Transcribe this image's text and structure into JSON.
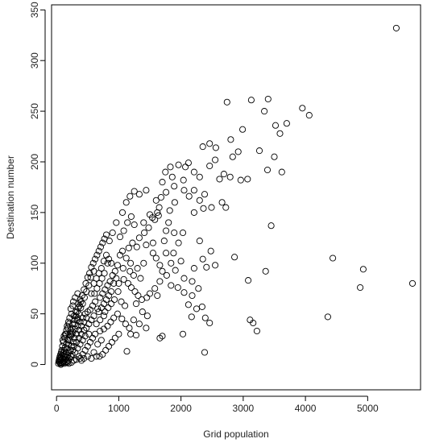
{
  "chart_data": {
    "type": "scatter",
    "title": "",
    "xlabel": "Grid population",
    "ylabel": "Destination number",
    "xlim": [
      -80,
      5850
    ],
    "ylim": [
      -25,
      355
    ],
    "xticks": [
      0,
      1000,
      2000,
      3000,
      4000,
      5000
    ],
    "yticks": [
      0,
      50,
      100,
      150,
      200,
      250,
      300,
      350
    ],
    "xtick_labels": [
      "0",
      "1000",
      "2000",
      "3000",
      "4000",
      "5000"
    ],
    "ytick_labels": [
      "0",
      "50",
      "100",
      "150",
      "200",
      "250",
      "300",
      "350"
    ],
    "grid": false,
    "legend": "none",
    "marker": "open-circle",
    "colors": {
      "marker": "#000000",
      "axis": "#000000",
      "background": "#ffffff"
    },
    "points": [
      [
        5460,
        332
      ],
      [
        2740,
        259
      ],
      [
        3130,
        261
      ],
      [
        3400,
        262
      ],
      [
        3950,
        253
      ],
      [
        3340,
        250
      ],
      [
        4060,
        246
      ],
      [
        3520,
        236
      ],
      [
        3700,
        238
      ],
      [
        2990,
        232
      ],
      [
        3590,
        228
      ],
      [
        2800,
        222
      ],
      [
        3260,
        211
      ],
      [
        2460,
        218
      ],
      [
        2350,
        215
      ],
      [
        2560,
        214
      ],
      [
        2830,
        205
      ],
      [
        2920,
        210
      ],
      [
        3500,
        205
      ],
      [
        1830,
        195
      ],
      [
        1960,
        197
      ],
      [
        2120,
        199
      ],
      [
        2210,
        190
      ],
      [
        2460,
        196
      ],
      [
        2550,
        202
      ],
      [
        2690,
        188
      ],
      [
        3390,
        192
      ],
      [
        3620,
        190
      ],
      [
        2070,
        195
      ],
      [
        1860,
        185
      ],
      [
        2300,
        185
      ],
      [
        2620,
        183
      ],
      [
        2790,
        185
      ],
      [
        2960,
        182
      ],
      [
        3070,
        183
      ],
      [
        2040,
        182
      ],
      [
        1330,
        168
      ],
      [
        1440,
        172
      ],
      [
        1600,
        162
      ],
      [
        1680,
        165
      ],
      [
        1760,
        170
      ],
      [
        1890,
        176
      ],
      [
        2050,
        172
      ],
      [
        2130,
        166
      ],
      [
        2210,
        172
      ],
      [
        2380,
        168
      ],
      [
        2300,
        162
      ],
      [
        2660,
        160
      ],
      [
        2490,
        155
      ],
      [
        2720,
        155
      ],
      [
        2360,
        154
      ],
      [
        2210,
        150
      ],
      [
        1650,
        155
      ],
      [
        1820,
        152
      ],
      [
        1500,
        148
      ],
      [
        1400,
        140
      ],
      [
        1250,
        138
      ],
      [
        1580,
        143
      ],
      [
        1640,
        147
      ],
      [
        1760,
        132
      ],
      [
        1890,
        130
      ],
      [
        2030,
        130
      ],
      [
        1960,
        120
      ],
      [
        2300,
        122
      ],
      [
        1730,
        122
      ],
      [
        1550,
        120
      ],
      [
        1440,
        118
      ],
      [
        1290,
        116
      ],
      [
        1160,
        115
      ],
      [
        1060,
        112
      ],
      [
        3450,
        137
      ],
      [
        1880,
        110
      ],
      [
        2000,
        102
      ],
      [
        1840,
        100
      ],
      [
        2350,
        104
      ],
      [
        2410,
        96
      ],
      [
        2550,
        98
      ],
      [
        2480,
        112
      ],
      [
        2860,
        106
      ],
      [
        3080,
        83
      ],
      [
        3360,
        92
      ],
      [
        4440,
        105
      ],
      [
        4930,
        94
      ],
      [
        4880,
        76
      ],
      [
        5720,
        80
      ],
      [
        4360,
        47
      ],
      [
        2210,
        95
      ],
      [
        1910,
        93
      ],
      [
        1770,
        88
      ],
      [
        2050,
        85
      ],
      [
        2180,
        82
      ],
      [
        1840,
        78
      ],
      [
        1950,
        76
      ],
      [
        2050,
        71
      ],
      [
        2180,
        68
      ],
      [
        2280,
        75
      ],
      [
        2120,
        59
      ],
      [
        2250,
        55
      ],
      [
        2340,
        57
      ],
      [
        2390,
        46
      ],
      [
        2460,
        41
      ],
      [
        2170,
        47
      ],
      [
        2030,
        30
      ],
      [
        2380,
        12
      ],
      [
        3110,
        44
      ],
      [
        3160,
        41
      ],
      [
        3220,
        33
      ],
      [
        1660,
        82
      ],
      [
        1580,
        75
      ],
      [
        1500,
        70
      ],
      [
        1450,
        66
      ],
      [
        1370,
        64
      ],
      [
        1280,
        60
      ],
      [
        1620,
        68
      ],
      [
        1700,
        28
      ],
      [
        1660,
        26
      ],
      [
        1440,
        36
      ],
      [
        1330,
        40
      ],
      [
        1280,
        29
      ],
      [
        1190,
        30
      ],
      [
        1130,
        13
      ],
      [
        1380,
        52
      ],
      [
        1460,
        48
      ],
      [
        1240,
        44
      ],
      [
        1190,
        100
      ],
      [
        1120,
        105
      ],
      [
        1070,
        95
      ],
      [
        1020,
        108
      ],
      [
        980,
        98
      ],
      [
        940,
        92
      ],
      [
        900,
        88
      ],
      [
        860,
        82
      ],
      [
        820,
        78
      ],
      [
        780,
        74
      ],
      [
        740,
        70
      ],
      [
        700,
        66
      ],
      [
        1080,
        84
      ],
      [
        1150,
        80
      ],
      [
        1200,
        76
      ],
      [
        1260,
        72
      ],
      [
        1310,
        68
      ],
      [
        990,
        72
      ],
      [
        930,
        64
      ],
      [
        880,
        60
      ],
      [
        830,
        56
      ],
      [
        780,
        52
      ],
      [
        1040,
        62
      ],
      [
        1100,
        58
      ],
      [
        980,
        50
      ],
      [
        920,
        46
      ],
      [
        870,
        42
      ],
      [
        820,
        38
      ],
      [
        760,
        35
      ],
      [
        700,
        33
      ],
      [
        1050,
        45
      ],
      [
        1110,
        40
      ],
      [
        1170,
        36
      ],
      [
        1000,
        30
      ],
      [
        940,
        26
      ],
      [
        890,
        22
      ],
      [
        840,
        18
      ],
      [
        790,
        14
      ],
      [
        740,
        10
      ],
      [
        690,
        8
      ],
      [
        620,
        62
      ],
      [
        580,
        58
      ],
      [
        540,
        54
      ],
      [
        660,
        55
      ],
      [
        600,
        48
      ],
      [
        560,
        44
      ],
      [
        520,
        40
      ],
      [
        480,
        36
      ],
      [
        640,
        40
      ],
      [
        700,
        44
      ],
      [
        760,
        48
      ],
      [
        620,
        30
      ],
      [
        580,
        26
      ],
      [
        540,
        22
      ],
      [
        500,
        18
      ],
      [
        460,
        14
      ],
      [
        420,
        10
      ],
      [
        380,
        6
      ],
      [
        660,
        20
      ],
      [
        720,
        24
      ],
      [
        600,
        12
      ],
      [
        640,
        8
      ],
      [
        560,
        6
      ],
      [
        500,
        8
      ],
      [
        520,
        30
      ],
      [
        460,
        28
      ],
      [
        420,
        24
      ],
      [
        380,
        20
      ],
      [
        340,
        16
      ],
      [
        300,
        12
      ],
      [
        440,
        34
      ],
      [
        400,
        30
      ],
      [
        360,
        26
      ],
      [
        320,
        22
      ],
      [
        280,
        18
      ],
      [
        260,
        14
      ],
      [
        480,
        46
      ],
      [
        440,
        42
      ],
      [
        400,
        38
      ],
      [
        360,
        34
      ],
      [
        320,
        30
      ],
      [
        290,
        26
      ],
      [
        500,
        52
      ],
      [
        460,
        50
      ],
      [
        420,
        46
      ],
      [
        380,
        42
      ],
      [
        340,
        38
      ],
      [
        250,
        10
      ],
      [
        230,
        8
      ],
      [
        210,
        6
      ],
      [
        190,
        4
      ],
      [
        170,
        3
      ],
      [
        150,
        2
      ],
      [
        270,
        22
      ],
      [
        240,
        18
      ],
      [
        220,
        14
      ],
      [
        200,
        12
      ],
      [
        180,
        9
      ],
      [
        160,
        7
      ],
      [
        140,
        5
      ],
      [
        120,
        4
      ],
      [
        100,
        3
      ],
      [
        80,
        2
      ],
      [
        60,
        1
      ],
      [
        50,
        2
      ],
      [
        300,
        35
      ],
      [
        260,
        32
      ],
      [
        230,
        28
      ],
      [
        210,
        24
      ],
      [
        190,
        20
      ],
      [
        170,
        16
      ],
      [
        150,
        12
      ],
      [
        130,
        10
      ],
      [
        110,
        8
      ],
      [
        90,
        6
      ],
      [
        70,
        5
      ],
      [
        60,
        4
      ],
      [
        330,
        44
      ],
      [
        290,
        40
      ],
      [
        250,
        36
      ],
      [
        220,
        30
      ],
      [
        200,
        27
      ],
      [
        180,
        24
      ],
      [
        160,
        20
      ],
      [
        140,
        17
      ],
      [
        120,
        14
      ],
      [
        100,
        11
      ],
      [
        80,
        9
      ],
      [
        70,
        7
      ],
      [
        560,
        70
      ],
      [
        600,
        80
      ],
      [
        640,
        85
      ],
      [
        680,
        90
      ],
      [
        720,
        95
      ],
      [
        760,
        102
      ],
      [
        800,
        108
      ],
      [
        840,
        104
      ],
      [
        880,
        100
      ],
      [
        600,
        92
      ],
      [
        550,
        86
      ],
      [
        520,
        78
      ],
      [
        480,
        72
      ],
      [
        450,
        66
      ],
      [
        420,
        60
      ],
      [
        390,
        56
      ],
      [
        360,
        50
      ],
      [
        340,
        46
      ],
      [
        820,
        100
      ],
      [
        770,
        90
      ],
      [
        730,
        85
      ],
      [
        690,
        80
      ],
      [
        650,
        75
      ],
      [
        610,
        70
      ],
      [
        1000,
        80
      ],
      [
        960,
        85
      ],
      [
        920,
        80
      ],
      [
        880,
        72
      ],
      [
        840,
        68
      ],
      [
        800,
        64
      ],
      [
        760,
        60
      ],
      [
        720,
        56
      ],
      [
        680,
        52
      ],
      [
        1300,
        95
      ],
      [
        1350,
        85
      ],
      [
        1400,
        100
      ],
      [
        1240,
        88
      ],
      [
        1180,
        92
      ],
      [
        1220,
        120
      ],
      [
        1330,
        125
      ],
      [
        1410,
        130
      ],
      [
        1480,
        135
      ],
      [
        1550,
        110
      ],
      [
        1600,
        105
      ],
      [
        1660,
        98
      ],
      [
        1700,
        92
      ],
      [
        1760,
        110
      ],
      [
        1800,
        140
      ],
      [
        1900,
        160
      ],
      [
        1700,
        180
      ],
      [
        1750,
        190
      ],
      [
        1620,
        150
      ],
      [
        1540,
        145
      ],
      [
        150,
        30
      ],
      [
        130,
        26
      ],
      [
        110,
        22
      ],
      [
        95,
        18
      ],
      [
        85,
        14
      ],
      [
        75,
        12
      ],
      [
        65,
        10
      ],
      [
        55,
        8
      ],
      [
        45,
        6
      ],
      [
        40,
        4
      ],
      [
        35,
        3
      ],
      [
        30,
        1
      ],
      [
        200,
        40
      ],
      [
        180,
        36
      ],
      [
        160,
        34
      ],
      [
        140,
        30
      ],
      [
        120,
        28
      ],
      [
        100,
        24
      ],
      [
        240,
        50
      ],
      [
        210,
        46
      ],
      [
        190,
        42
      ],
      [
        170,
        38
      ],
      [
        230,
        55
      ],
      [
        260,
        58
      ],
      [
        280,
        48
      ],
      [
        310,
        52
      ],
      [
        350,
        60
      ],
      [
        380,
        64
      ],
      [
        410,
        68
      ],
      [
        440,
        74
      ],
      [
        470,
        80
      ],
      [
        500,
        86
      ],
      [
        530,
        90
      ],
      [
        560,
        96
      ],
      [
        590,
        100
      ],
      [
        620,
        104
      ],
      [
        650,
        108
      ],
      [
        680,
        112
      ],
      [
        710,
        116
      ],
      [
        740,
        120
      ],
      [
        770,
        124
      ],
      [
        800,
        128
      ],
      [
        1060,
        150
      ],
      [
        1120,
        160
      ],
      [
        1180,
        166
      ],
      [
        1250,
        171
      ],
      [
        960,
        140
      ],
      [
        900,
        130
      ],
      [
        850,
        122
      ],
      [
        1020,
        126
      ],
      [
        1080,
        132
      ],
      [
        1140,
        140
      ],
      [
        1200,
        146
      ],
      [
        320,
        5
      ],
      [
        360,
        8
      ],
      [
        400,
        4
      ],
      [
        440,
        6
      ],
      [
        280,
        4
      ],
      [
        240,
        2
      ],
      [
        200,
        1
      ],
      [
        180,
        2
      ],
      [
        130,
        1
      ],
      [
        110,
        2
      ],
      [
        90,
        1
      ],
      [
        70,
        0
      ],
      [
        340,
        70
      ],
      [
        300,
        66
      ],
      [
        270,
        62
      ],
      [
        250,
        30
      ],
      [
        230,
        34
      ],
      [
        260,
        40
      ],
      [
        290,
        44
      ],
      [
        310,
        48
      ],
      [
        330,
        52
      ],
      [
        350,
        56
      ],
      [
        370,
        58
      ],
      [
        390,
        62
      ]
    ]
  }
}
